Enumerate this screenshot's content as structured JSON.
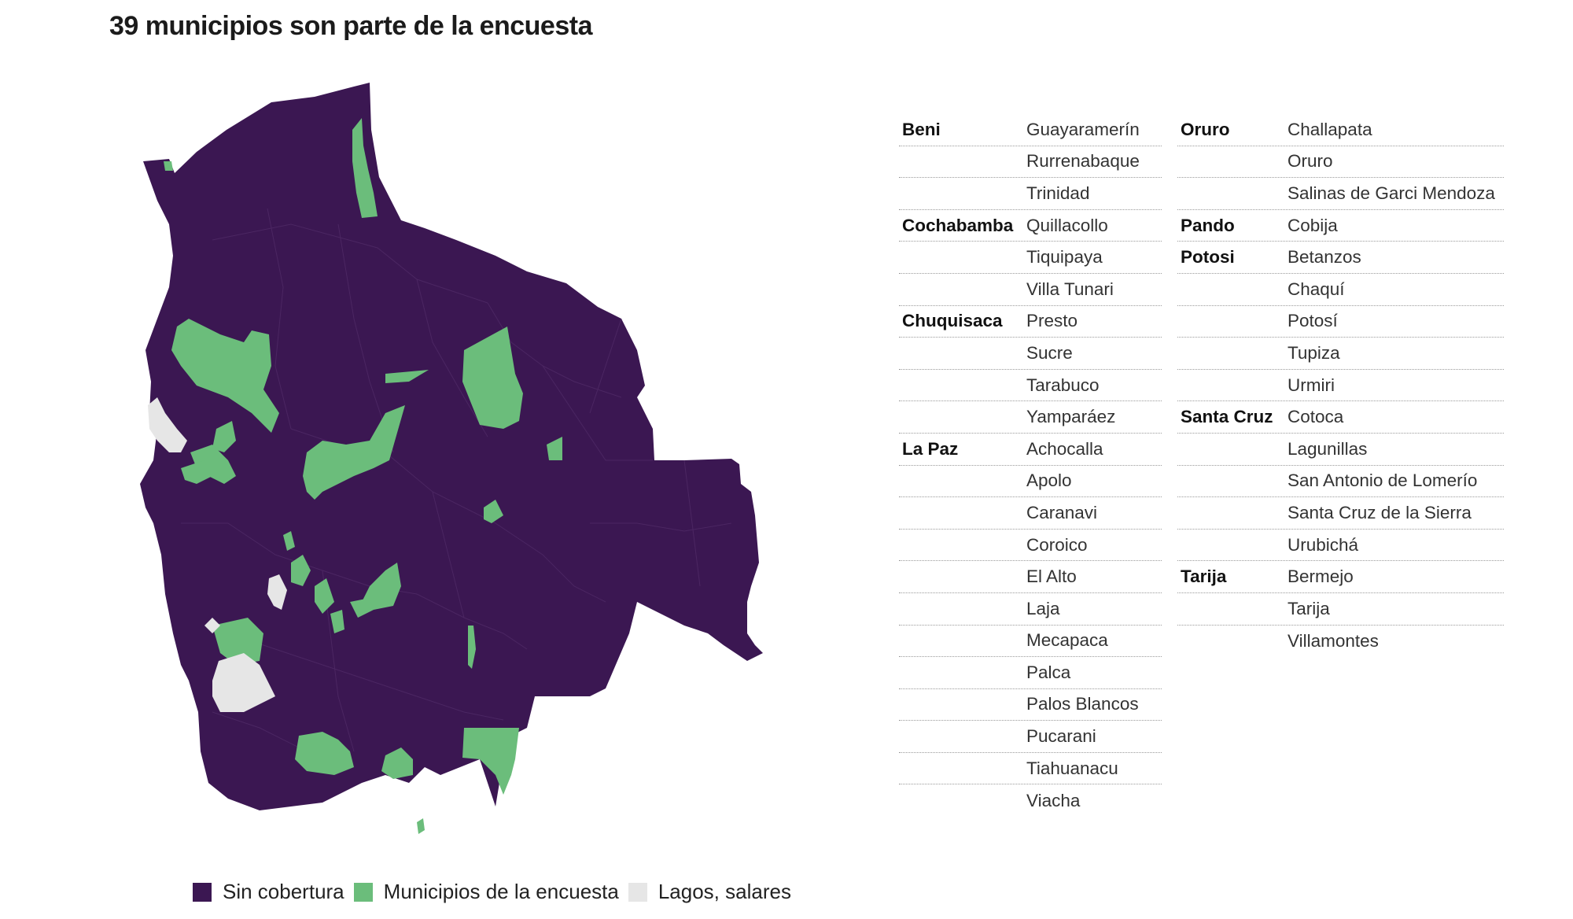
{
  "title": "39 municipios son parte de la encuesta",
  "colors": {
    "sin_cobertura": "#3b1752",
    "encuesta": "#6bbd7b",
    "lagos": "#e6e6e6"
  },
  "legend": [
    {
      "label": "Sin cobertura",
      "color": "#3b1752"
    },
    {
      "label": "Municipios de la encuesta",
      "color": "#6bbd7b"
    },
    {
      "label": "Lagos, salares",
      "color": "#e6e6e6"
    }
  ],
  "table_left": [
    {
      "dept": "Beni",
      "muni": "Guayaramerín"
    },
    {
      "dept": "",
      "muni": "Rurrenabaque"
    },
    {
      "dept": "",
      "muni": "Trinidad"
    },
    {
      "dept": "Cochabamba",
      "muni": "Quillacollo"
    },
    {
      "dept": "",
      "muni": "Tiquipaya"
    },
    {
      "dept": "",
      "muni": "Villa Tunari"
    },
    {
      "dept": "Chuquisaca",
      "muni": "Presto"
    },
    {
      "dept": "",
      "muni": "Sucre"
    },
    {
      "dept": "",
      "muni": "Tarabuco"
    },
    {
      "dept": "",
      "muni": "Yamparáez"
    },
    {
      "dept": "La Paz",
      "muni": "Achocalla"
    },
    {
      "dept": "",
      "muni": "Apolo"
    },
    {
      "dept": "",
      "muni": "Caranavi"
    },
    {
      "dept": "",
      "muni": "Coroico"
    },
    {
      "dept": "",
      "muni": "El Alto"
    },
    {
      "dept": "",
      "muni": "Laja"
    },
    {
      "dept": "",
      "muni": "Mecapaca"
    },
    {
      "dept": "",
      "muni": "Palca"
    },
    {
      "dept": "",
      "muni": "Palos Blancos"
    },
    {
      "dept": "",
      "muni": "Pucarani"
    },
    {
      "dept": "",
      "muni": "Tiahuanacu"
    },
    {
      "dept": "",
      "muni": "Viacha"
    }
  ],
  "table_right": [
    {
      "dept": "Oruro",
      "muni": "Challapata"
    },
    {
      "dept": "",
      "muni": "Oruro"
    },
    {
      "dept": "",
      "muni": "Salinas de Garci Mendoza"
    },
    {
      "dept": "Pando",
      "muni": "Cobija"
    },
    {
      "dept": "Potosi",
      "muni": "Betanzos"
    },
    {
      "dept": "",
      "muni": "Chaquí"
    },
    {
      "dept": "",
      "muni": "Potosí"
    },
    {
      "dept": "",
      "muni": "Tupiza"
    },
    {
      "dept": "",
      "muni": "Urmiri"
    },
    {
      "dept": "Santa Cruz",
      "muni": "Cotoca"
    },
    {
      "dept": "",
      "muni": "Lagunillas"
    },
    {
      "dept": "",
      "muni": "San Antonio de Lomerío"
    },
    {
      "dept": "",
      "muni": "Santa Cruz de la Sierra"
    },
    {
      "dept": "",
      "muni": "Urubichá"
    },
    {
      "dept": "Tarija",
      "muni": "Bermejo"
    },
    {
      "dept": "",
      "muni": "Tarija"
    },
    {
      "dept": "",
      "muni": "Villamontes"
    }
  ]
}
